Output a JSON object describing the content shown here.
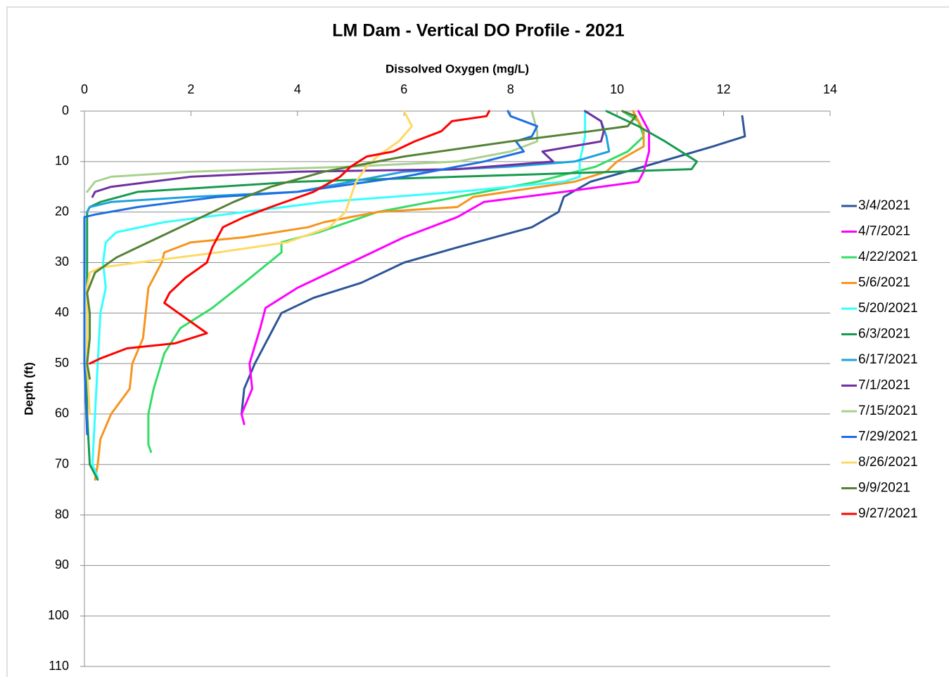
{
  "chart_data": {
    "type": "line",
    "title": "LM Dam - Vertical DO Profile - 2021",
    "x_label": "Dissolved Oxygen (mg/L)",
    "y_label": "Depth (ft)",
    "xlim": [
      0,
      14
    ],
    "xticks": [
      0,
      2,
      4,
      6,
      8,
      10,
      12,
      14
    ],
    "ylim": [
      0,
      110
    ],
    "yticks": [
      0,
      10,
      20,
      30,
      40,
      50,
      60,
      70,
      80,
      90,
      100,
      110
    ],
    "y_reversed": true,
    "x_axis_position": "top",
    "grid": true,
    "legend": "right",
    "series": [
      {
        "name": "3/4/2021",
        "color": "#2e5597",
        "x": [
          12.35,
          12.4,
          11.8,
          10.5,
          9.5,
          9.0,
          8.9,
          8.4,
          7.0,
          6.0,
          5.2,
          4.3,
          3.7,
          3.5,
          3.2,
          3.0,
          2.95
        ],
        "values": [
          1,
          5,
          7,
          11,
          14,
          17,
          20,
          23,
          27,
          30,
          34,
          37,
          40,
          44,
          50,
          55,
          60
        ]
      },
      {
        "name": "4/7/2021",
        "color": "#ff00ff",
        "x": [
          10.4,
          10.6,
          10.6,
          10.5,
          10.4,
          9.0,
          7.5,
          7.0,
          6.0,
          5.0,
          4.0,
          3.4,
          3.3,
          3.1,
          3.15,
          2.95,
          3.0
        ],
        "values": [
          0,
          4,
          8,
          12,
          14,
          16,
          18,
          21,
          25,
          30,
          35,
          39,
          43,
          50,
          55,
          60,
          62
        ]
      },
      {
        "name": "4/22/2021",
        "color": "#33dd66",
        "x": [
          10.1,
          10.4,
          10.5,
          10.2,
          9.6,
          8.5,
          7.0,
          5.5,
          4.4,
          3.7,
          3.7,
          3.0,
          2.4,
          1.8,
          1.5,
          1.3,
          1.2,
          1.2,
          1.25
        ],
        "values": [
          0,
          2,
          5,
          8,
          11,
          14,
          17,
          20,
          24,
          26,
          28,
          34,
          39,
          43,
          48,
          55,
          60,
          66,
          67.5
        ]
      },
      {
        "name": "5/6/2021",
        "color": "#f7941d",
        "x": [
          10.3,
          10.5,
          10.5,
          10.0,
          9.8,
          9.2,
          7.3,
          7.0,
          5.5,
          4.5,
          4.2,
          3.0,
          2.0,
          1.5,
          1.45,
          1.2,
          1.15,
          1.1,
          0.9,
          0.85,
          0.5,
          0.3,
          0.25,
          0.2
        ],
        "values": [
          0,
          4,
          7,
          10,
          12,
          14,
          17,
          19,
          20,
          22,
          23,
          25,
          26,
          28,
          30,
          35,
          40,
          45,
          50,
          55,
          60,
          65,
          70,
          73
        ]
      },
      {
        "name": "5/20/2021",
        "color": "#33ffff",
        "x": [
          9.4,
          9.4,
          9.3,
          9.3,
          9.0,
          7.0,
          4.5,
          3.0,
          1.5,
          0.6,
          0.4,
          0.35,
          0.4,
          0.3,
          0.25,
          0.2,
          0.15,
          0.25
        ],
        "values": [
          0,
          5,
          10,
          13,
          14,
          16,
          18,
          20,
          22,
          24,
          26,
          30,
          35,
          40,
          50,
          60,
          70,
          72.5
        ]
      },
      {
        "name": "6/3/2021",
        "color": "#169b4e",
        "x": [
          9.8,
          10.0,
          10.4,
          10.9,
          11.5,
          11.4,
          10.0,
          7.0,
          4.0,
          1.0,
          0.3,
          0.1,
          0.05,
          0.05,
          0.05,
          0.05,
          0.05,
          0.1,
          0.25
        ],
        "values": [
          0,
          1,
          3,
          6,
          10,
          11.5,
          12,
          13,
          14,
          16,
          18,
          19,
          20,
          30,
          40,
          50,
          60,
          70,
          73
        ]
      },
      {
        "name": "6/17/2021",
        "color": "#1fa0e0",
        "x": [
          9.4,
          9.7,
          9.8,
          9.85,
          9.2,
          8.0,
          6.0,
          5.0,
          4.0,
          2.0,
          0.5,
          0.1,
          0.05
        ],
        "values": [
          0,
          2,
          5,
          8,
          10,
          11,
          12,
          14,
          16,
          17,
          18,
          19,
          20
        ]
      },
      {
        "name": "7/1/2021",
        "color": "#7030a0",
        "x": [
          9.4,
          9.7,
          9.75,
          9.7,
          8.6,
          8.8,
          7.0,
          4.0,
          2.0,
          0.5,
          0.2,
          0.15
        ],
        "values": [
          0,
          2,
          4,
          6,
          8,
          10,
          11.5,
          12,
          13,
          15,
          16,
          17
        ]
      },
      {
        "name": "7/15/2021",
        "color": "#a9d18e",
        "x": [
          8.4,
          8.5,
          8.5,
          8.0,
          7.0,
          5.0,
          2.0,
          0.5,
          0.2,
          0.05
        ],
        "values": [
          0,
          4,
          6,
          8,
          10,
          11,
          12,
          13,
          14,
          16
        ]
      },
      {
        "name": "7/29/2021",
        "color": "#1e6fe0",
        "x": [
          7.95,
          8.0,
          8.5,
          8.4,
          8.1,
          8.25,
          7.5,
          7.0,
          6.0,
          4.0,
          2.5,
          1.0,
          0.2,
          0,
          0,
          0,
          0,
          0.05
        ],
        "values": [
          0,
          1,
          3,
          5,
          6,
          8,
          10,
          11,
          13,
          16,
          17,
          19,
          20.5,
          21,
          30,
          40,
          50,
          64
        ]
      },
      {
        "name": "8/26/2021",
        "color": "#ffd966",
        "x": [
          6.0,
          6.15,
          5.9,
          5.5,
          5.3,
          5.1,
          5.0,
          4.9,
          4.6,
          3.8,
          2.5,
          1.0,
          0.3,
          0.1,
          0.05,
          0.05,
          0.05,
          0.1
        ],
        "values": [
          0,
          3,
          6,
          9,
          11,
          14,
          17,
          20,
          23,
          26,
          28,
          30,
          31,
          32,
          35,
          40,
          50,
          60
        ]
      },
      {
        "name": "9/9/2021",
        "color": "#548235",
        "x": [
          10.1,
          10.35,
          10.2,
          9.5,
          8.0,
          6.0,
          4.5,
          3.5,
          2.8,
          2.2,
          1.6,
          1.0,
          0.6,
          0.2,
          0.05,
          0.1,
          0.1,
          0.05,
          0.1
        ],
        "values": [
          0,
          1,
          3,
          4,
          6,
          9,
          12,
          15,
          18,
          21,
          24,
          27,
          29,
          32,
          36,
          40,
          45,
          50,
          53
        ]
      },
      {
        "name": "9/27/2021",
        "color": "#ff0000",
        "x": [
          7.6,
          7.55,
          6.9,
          6.7,
          6.2,
          5.8,
          5.3,
          5.0,
          4.8,
          4.3,
          3.5,
          3.0,
          2.6,
          2.4,
          2.3,
          1.9,
          1.6,
          1.5,
          1.9,
          2.3,
          1.7,
          0.8,
          0.3,
          0.1
        ],
        "values": [
          0,
          1,
          2,
          4,
          6,
          8,
          9,
          11,
          13,
          16,
          19,
          21,
          23,
          27,
          30,
          33,
          36,
          38,
          41,
          44,
          46,
          47,
          49,
          50
        ]
      }
    ]
  }
}
